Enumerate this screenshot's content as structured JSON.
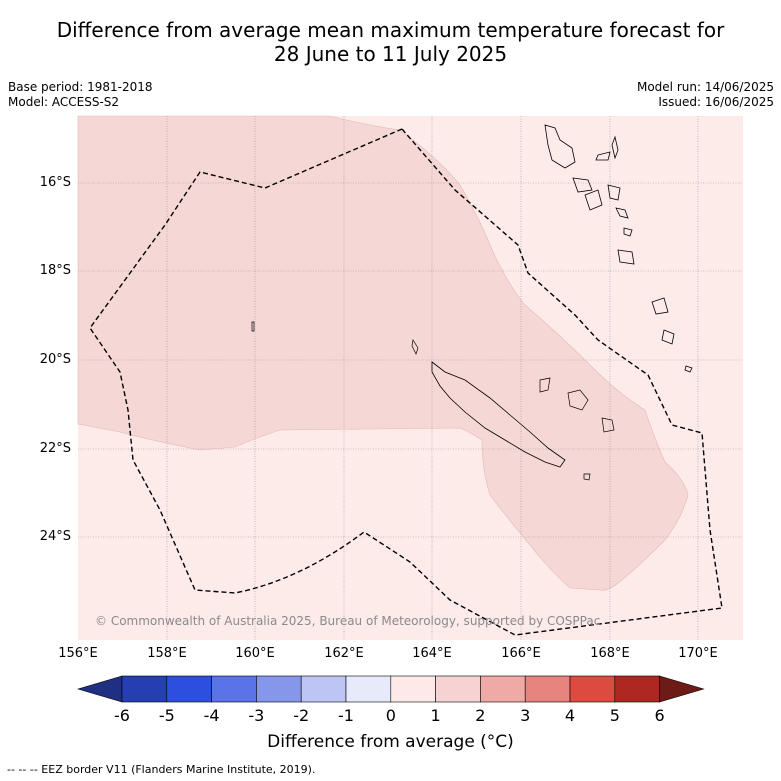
{
  "title_line1": "Difference from average mean maximum temperature forecast for",
  "title_line2": "28 June to 11 July 2025",
  "meta_left": [
    "Base period: 1981-2018",
    "Model: ACCESS-S2"
  ],
  "meta_right": [
    "Model run: 14/06/2025",
    "Issued: 16/06/2025"
  ],
  "lat_labels": [
    "16°S",
    "18°S",
    "20°S",
    "22°S",
    "24°S"
  ],
  "lon_labels": [
    "156°E",
    "158°E",
    "160°E",
    "162°E",
    "164°E",
    "166°E",
    "168°E",
    "170°E"
  ],
  "copyright": "© Commonwealth of Australia 2025, Bureau of Meteorology, supported by COSPPac",
  "colorbar": {
    "title": "Difference from average (°C)",
    "ticks": [
      "-6",
      "-5",
      "-4",
      "-3",
      "-2",
      "-1",
      "0",
      "1",
      "2",
      "3",
      "4",
      "5",
      "6"
    ],
    "colors": [
      "#1f2f82",
      "#233fb2",
      "#2d4fe0",
      "#5a73e8",
      "#8596eb",
      "#bcc5f4",
      "#e6eafb",
      "#fdeae8",
      "#f6d3d2",
      "#efaaa6",
      "#e8847e",
      "#dc4a40",
      "#ad2820",
      "#6e1a16"
    ]
  },
  "map": {
    "background_color": "#fcebe9",
    "warm_region_color": "#f5d7d6",
    "eez_style": "dashed black line"
  },
  "footnote": "-- -- -- EEZ border V11 (Flanders Marine Institute, 2019)."
}
